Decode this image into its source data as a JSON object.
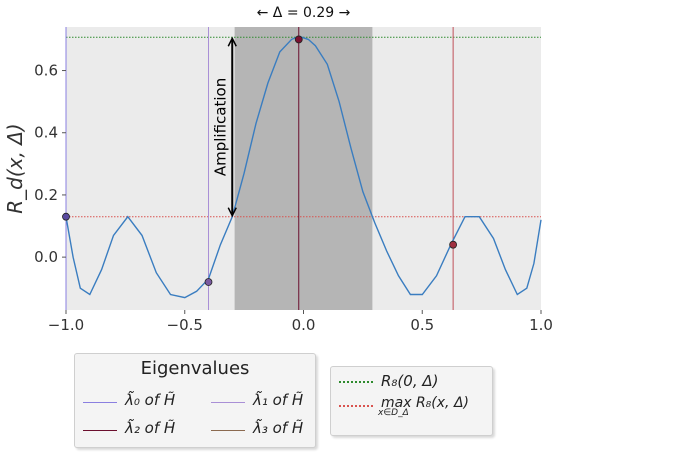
{
  "chart_data": {
    "type": "line",
    "title": "← Δ = 0.29 →",
    "xlabel": "x",
    "ylabel": "R_d(x, Δ)",
    "xlim": [
      -1.0,
      1.0
    ],
    "ylim": [
      -0.17,
      0.74
    ],
    "x_ticks": [
      -1.0,
      -0.5,
      0.0,
      0.5,
      1.0
    ],
    "x_tick_labels": [
      "−1.0",
      "−0.5",
      "0.0",
      "0.5",
      "1.0"
    ],
    "y_ticks": [
      0.0,
      0.2,
      0.4,
      0.6
    ],
    "y_tick_labels": [
      "0.0",
      "0.2",
      "0.4",
      "0.6"
    ],
    "grid": false,
    "background": "#ebebeb",
    "series": [
      {
        "name": "R_d(x, Δ)",
        "color": "#3a7dc0",
        "x": [
          -1.0,
          -0.97,
          -0.94,
          -0.9,
          -0.85,
          -0.8,
          -0.74,
          -0.68,
          -0.62,
          -0.56,
          -0.5,
          -0.45,
          -0.4,
          -0.35,
          -0.3,
          -0.25,
          -0.2,
          -0.15,
          -0.1,
          -0.05,
          -0.02,
          0.02,
          0.05,
          0.1,
          0.15,
          0.2,
          0.25,
          0.3,
          0.35,
          0.4,
          0.45,
          0.5,
          0.56,
          0.62,
          0.68,
          0.74,
          0.8,
          0.85,
          0.9,
          0.94,
          0.97,
          1.0
        ],
        "values": [
          0.13,
          0.0,
          -0.1,
          -0.12,
          -0.04,
          0.07,
          0.13,
          0.07,
          -0.05,
          -0.12,
          -0.13,
          -0.11,
          -0.07,
          0.04,
          0.13,
          0.27,
          0.43,
          0.56,
          0.66,
          0.7,
          0.71,
          0.7,
          0.68,
          0.62,
          0.5,
          0.35,
          0.21,
          0.11,
          0.02,
          -0.06,
          -0.12,
          -0.12,
          -0.06,
          0.04,
          0.13,
          0.13,
          0.06,
          -0.04,
          -0.12,
          -0.1,
          -0.02,
          0.12
        ]
      }
    ],
    "hlines": [
      {
        "name": "R_8(0, Δ)",
        "y": 0.707,
        "color": "#2e8b2e",
        "style": "dotted"
      },
      {
        "name": "max R_8(x, Δ) over x ∈ D_Δ",
        "y": 0.13,
        "color": "#d9534f",
        "style": "dotted"
      }
    ],
    "vlines": [
      {
        "x": -1.0,
        "color": "#8a7fe0"
      },
      {
        "x": -0.4,
        "color": "#a98fd6"
      },
      {
        "x": -0.02,
        "color": "#6b0f2e"
      },
      {
        "x": 0.63,
        "color": "#c0505a"
      }
    ],
    "shaded_region": {
      "x0": -0.29,
      "x1": 0.29,
      "color": "#b5b5b5"
    },
    "markers": [
      {
        "x": -1.0,
        "y": 0.13,
        "color": "#5a4aa0"
      },
      {
        "x": -0.4,
        "y": -0.08,
        "color": "#7a5aa0"
      },
      {
        "x": -0.02,
        "y": 0.7,
        "color": "#7a1030"
      },
      {
        "x": 0.63,
        "y": 0.04,
        "color": "#a03040"
      }
    ],
    "annotation": {
      "text": "Amplification",
      "x": -0.3,
      "y_from": 0.13,
      "y_to": 0.707
    }
  },
  "legend_eigen": {
    "title": "Eigenvalues",
    "items": [
      {
        "label": "λ̃₀ of H̃",
        "color": "#8a7fe0"
      },
      {
        "label": "λ̃₁ of H̃",
        "color": "#a98fd6"
      },
      {
        "label": "λ̃₂ of H̃",
        "color": "#6b0f2e"
      },
      {
        "label": "λ̃₃ of H̃",
        "color": "#8b6a50"
      }
    ]
  },
  "legend_lines": {
    "item0": {
      "label": "R₈(0, Δ)",
      "color": "#2e8b2e"
    },
    "item1": {
      "label_top": "max R₈(x, Δ)",
      "label_bottom": "x∈D_Δ",
      "color": "#d9534f"
    }
  }
}
